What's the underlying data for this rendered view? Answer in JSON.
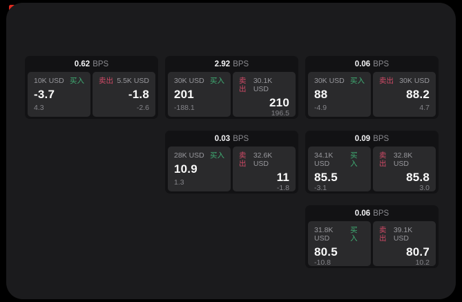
{
  "theme": {
    "page_bg": "#000000",
    "surface_bg": "#1b1b1d",
    "card_bg": "#121214",
    "tile_bg": "#2a2a2c",
    "buy_color": "#3fae74",
    "sell_color": "#cf4a66",
    "indicator_color": "#e02b20"
  },
  "labels": {
    "bps_suffix": "BPS",
    "buy": "买入",
    "sell": "卖出"
  },
  "cards": [
    {
      "col": 1,
      "row": 1,
      "bps": "0.62",
      "buy": {
        "amount": "10K USD",
        "value": "-3.7",
        "delta": "4.3"
      },
      "sell": {
        "amount": "5.5K USD",
        "value": "-1.8",
        "delta": "-2.6"
      }
    },
    {
      "col": 2,
      "row": 1,
      "bps": "2.92",
      "buy": {
        "amount": "30K USD",
        "value": "201",
        "delta": "-188.1"
      },
      "sell": {
        "amount": "30.1K USD",
        "value": "210",
        "delta": "196.5"
      }
    },
    {
      "col": 3,
      "row": 1,
      "bps": "0.06",
      "buy": {
        "amount": "30K USD",
        "value": "88",
        "delta": "-4.9"
      },
      "sell": {
        "amount": "30K USD",
        "value": "88.2",
        "delta": "4.7"
      }
    },
    {
      "col": 2,
      "row": 2,
      "bps": "0.03",
      "buy": {
        "amount": "28K USD",
        "value": "10.9",
        "delta": "1.3"
      },
      "sell": {
        "amount": "32.6K USD",
        "value": "11",
        "delta": "-1.8"
      }
    },
    {
      "col": 3,
      "row": 2,
      "bps": "0.09",
      "buy": {
        "amount": "34.1K USD",
        "value": "85.5",
        "delta": "-3.1"
      },
      "sell": {
        "amount": "32.8K USD",
        "value": "85.8",
        "delta": "3.0"
      }
    },
    {
      "col": 3,
      "row": 3,
      "bps": "0.06",
      "buy": {
        "amount": "31.8K USD",
        "value": "80.5",
        "delta": "-10.8"
      },
      "sell": {
        "amount": "39.1K USD",
        "value": "80.7",
        "delta": "10.2"
      }
    }
  ]
}
